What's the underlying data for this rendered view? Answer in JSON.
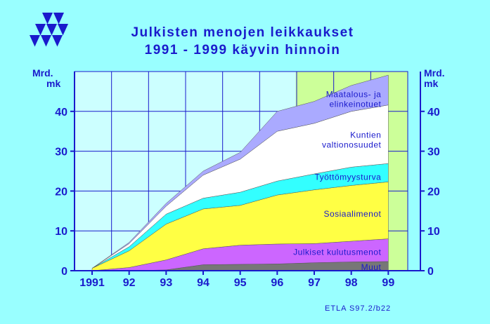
{
  "chart_data": {
    "type": "area",
    "title": "Julkisten menojen leikkaukset",
    "subtitle": "1991 - 1999 käyvin hinnoin",
    "ylabel_left": [
      "Mrd.",
      "mk"
    ],
    "ylabel_right": [
      "Mrd.",
      "mk"
    ],
    "x": [
      "1991",
      "92",
      "93",
      "94",
      "95",
      "96",
      "97",
      "98",
      "99"
    ],
    "ylim": [
      0,
      50
    ],
    "yticks": [
      "0",
      "10",
      "20",
      "30",
      "40"
    ],
    "stacked": true,
    "forecast_from": "96.5",
    "series": [
      {
        "name": "Muut",
        "color": "#777777",
        "values": [
          0,
          0,
          0.2,
          1.5,
          1.6,
          1.7,
          2.0,
          2.2,
          2.3
        ]
      },
      {
        "name": "Julkiset kulutusmenot",
        "color": "#CC66FF",
        "values": [
          0,
          0.8,
          2.5,
          4.0,
          4.8,
          5.0,
          4.8,
          5.2,
          5.7
        ]
      },
      {
        "name": "Sosiaalimenot",
        "color": "#FFFF44",
        "values": [
          0.6,
          4.2,
          9.0,
          10.0,
          10.0,
          12.3,
          13.5,
          14.0,
          14.3
        ]
      },
      {
        "name": "Työttömyysturva",
        "color": "#33FFFF",
        "values": [
          0,
          1.0,
          2.5,
          2.7,
          3.3,
          3.5,
          4.0,
          4.6,
          4.6
        ]
      },
      {
        "name": "Kuntien valtionosuudet",
        "color": "#FFFFFF",
        "values": [
          0,
          0.8,
          2.0,
          5.8,
          8.3,
          12.5,
          12.7,
          14.0,
          14.7
        ]
      },
      {
        "name": "Maatalous- ja elinkeinotuet",
        "color": "#AAAAFF",
        "values": [
          0,
          0.3,
          0.7,
          1.0,
          1.7,
          5.0,
          5.5,
          6.5,
          7.5
        ]
      }
    ],
    "series_labels": [
      {
        "lines": [
          "Muut"
        ]
      },
      {
        "lines": [
          "Julkiset kulutusmenot"
        ]
      },
      {
        "lines": [
          "Sosiaalimenot"
        ]
      },
      {
        "lines": [
          "Työttömyysturva"
        ]
      },
      {
        "lines": [
          "Kuntien",
          "valtionosuudet"
        ]
      },
      {
        "lines": [
          "Maatalous- ja",
          "elinkeinotuet"
        ]
      }
    ]
  },
  "source": "ETLA S97.2/b22",
  "colors": {
    "background": "#99FFFF",
    "plot": "#CCFFFF",
    "forecast": "#CCFF99",
    "grid": "#1a1acc",
    "text": "#1a1acc"
  },
  "logo": "etla-triangles-logo"
}
